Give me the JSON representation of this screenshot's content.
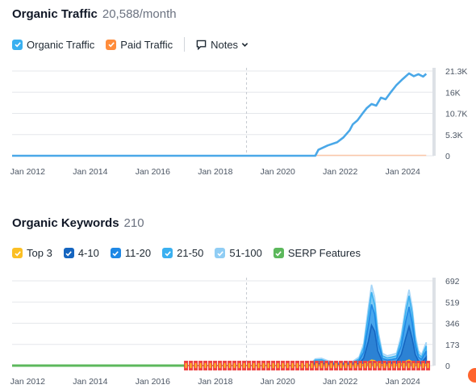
{
  "traffic": {
    "title": "Organic Traffic",
    "value": "20,588/month",
    "legend": [
      {
        "label": "Organic Traffic",
        "color": "#3ab0f0",
        "checked": true
      },
      {
        "label": "Paid Traffic",
        "color": "#ff8c3b",
        "checked": true
      }
    ],
    "notes_label": "Notes"
  },
  "keywords": {
    "title": "Organic Keywords",
    "value": "210",
    "legend": [
      {
        "label": "Top 3",
        "color": "#fbbf24",
        "checked": true
      },
      {
        "label": "4-10",
        "color": "#1565c0",
        "checked": true
      },
      {
        "label": "11-20",
        "color": "#1e88e5",
        "checked": true
      },
      {
        "label": "21-50",
        "color": "#3ab0f0",
        "checked": true
      },
      {
        "label": "51-100",
        "color": "#90cdf4",
        "checked": true
      },
      {
        "label": "SERP Features",
        "color": "#5cb85c",
        "checked": true
      }
    ]
  },
  "chart_data": [
    {
      "type": "line",
      "title": "Organic Traffic",
      "x_ticks": [
        "Jan 2012",
        "Jan 2014",
        "Jan 2016",
        "Jan 2018",
        "Jan 2020",
        "Jan 2022",
        "Jan 2024"
      ],
      "y_ticks": [
        "21.3K",
        "16K",
        "10.7K",
        "5.3K",
        "0"
      ],
      "ylim": [
        0,
        21300
      ],
      "xlim": [
        2011.5,
        2025
      ],
      "grid": true,
      "series": [
        {
          "name": "Organic Traffic",
          "color": "#4aa8e8",
          "x": [
            2011.5,
            2021.2,
            2021.3,
            2021.6,
            2021.9,
            2022.1,
            2022.3,
            2022.4,
            2022.55,
            2022.7,
            2022.85,
            2023.0,
            2023.15,
            2023.3,
            2023.45,
            2023.6,
            2023.8,
            2024.0,
            2024.2,
            2024.35,
            2024.5,
            2024.65,
            2024.75
          ],
          "y": [
            0,
            0,
            1500,
            2600,
            3400,
            4600,
            6400,
            7900,
            8900,
            10500,
            12000,
            13000,
            12600,
            14600,
            14200,
            15800,
            17800,
            19300,
            20700,
            20000,
            20500,
            19900,
            20588
          ]
        },
        {
          "name": "Paid Traffic",
          "color": "#ff8c3b",
          "x": [
            2021.2,
            2024.75
          ],
          "y": [
            0,
            0
          ]
        }
      ]
    },
    {
      "type": "area",
      "title": "Organic Keywords",
      "x_ticks": [
        "Jan 2012",
        "Jan 2014",
        "Jan 2016",
        "Jan 2018",
        "Jan 2020",
        "Jan 2022",
        "Jan 2024"
      ],
      "y_ticks": [
        "692",
        "519",
        "346",
        "173",
        "0"
      ],
      "ylim": [
        0,
        692
      ],
      "xlim": [
        2011.5,
        2025
      ],
      "grid": true,
      "x": [
        2011.5,
        2021.0,
        2021.2,
        2021.4,
        2021.6,
        2021.8,
        2022.0,
        2022.2,
        2022.4,
        2022.6,
        2022.75,
        2022.9,
        2023.0,
        2023.1,
        2023.2,
        2023.35,
        2023.5,
        2023.65,
        2023.8,
        2023.95,
        2024.1,
        2024.2,
        2024.3,
        2024.4,
        2024.5,
        2024.6,
        2024.75
      ],
      "series": [
        {
          "name": "51-100",
          "color": "#a5d5f7",
          "values": [
            0,
            0,
            55,
            60,
            40,
            30,
            25,
            30,
            35,
            70,
            180,
            480,
            660,
            560,
            300,
            100,
            80,
            90,
            100,
            250,
            500,
            620,
            480,
            250,
            120,
            90,
            190
          ]
        },
        {
          "name": "21-50",
          "color": "#3ab0f0",
          "values": [
            0,
            0,
            45,
            48,
            30,
            22,
            18,
            22,
            25,
            55,
            150,
            420,
            600,
            500,
            260,
            80,
            62,
            70,
            80,
            210,
            450,
            570,
            430,
            210,
            95,
            70,
            160
          ]
        },
        {
          "name": "11-20",
          "color": "#1e88e5",
          "values": [
            0,
            0,
            32,
            35,
            20,
            14,
            12,
            15,
            18,
            40,
            110,
            330,
            500,
            420,
            200,
            58,
            45,
            50,
            58,
            160,
            370,
            480,
            350,
            160,
            70,
            50,
            120
          ]
        },
        {
          "name": "4-10",
          "color": "#1565c0",
          "values": [
            0,
            0,
            15,
            18,
            10,
            6,
            5,
            6,
            8,
            18,
            60,
            200,
            330,
            280,
            120,
            30,
            22,
            25,
            30,
            90,
            230,
            320,
            220,
            90,
            38,
            25,
            70
          ]
        },
        {
          "name": "Top 3",
          "color": "#fbbf24",
          "values": [
            0,
            0,
            2,
            3,
            2,
            1,
            1,
            1,
            2,
            4,
            10,
            30,
            45,
            40,
            20,
            6,
            4,
            5,
            6,
            15,
            35,
            45,
            30,
            15,
            6,
            4,
            12
          ]
        }
      ],
      "serp_features_range": [
        2011.5,
        2024.75
      ]
    }
  ]
}
